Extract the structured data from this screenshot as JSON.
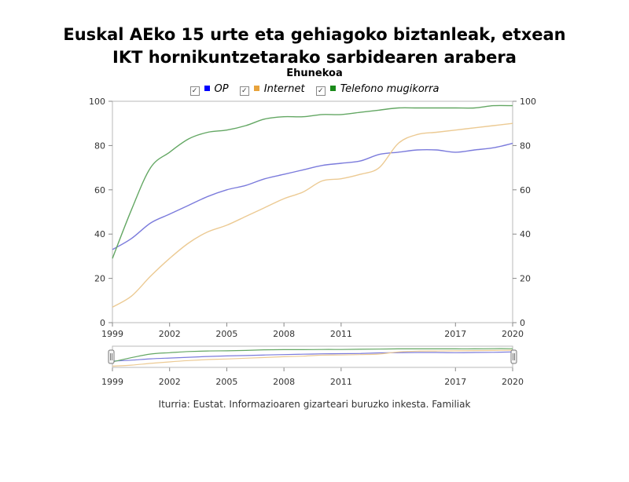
{
  "header": {
    "title_line1": "Euskal AEko 15 urte eta gehiagoko biztanleak, etxean",
    "title_line2": "IKT hornikuntzetarako sarbidearen arabera",
    "subtitle": "Ehunekoa"
  },
  "source": "Iturria: Eustat. Informazioaren gizarteari buruzko inkesta. Familiak",
  "chart_data": {
    "type": "line",
    "x_tick_labels": [
      "1999",
      "2002",
      "2005",
      "2008",
      "2011",
      "2017",
      "2020"
    ],
    "y_tick_labels": [
      "0",
      "20",
      "40",
      "60",
      "80",
      "100"
    ],
    "ylim": [
      0,
      100
    ],
    "grid": false,
    "legend_position": "top-center",
    "navigator": true,
    "series": [
      {
        "name": "OP",
        "color": "#0000ff",
        "line_color": "#7b7bdc",
        "x": [
          1999,
          2000,
          2001,
          2002,
          2003,
          2004,
          2005,
          2006,
          2007,
          2008,
          2009,
          2010,
          2011,
          2012,
          2013,
          2014,
          2015,
          2016,
          2017,
          2018,
          2019,
          2020
        ],
        "values": [
          33,
          38,
          45,
          49,
          53,
          57,
          60,
          62,
          65,
          67,
          69,
          71,
          72,
          73,
          76,
          77,
          78,
          78,
          77,
          78,
          79,
          81
        ]
      },
      {
        "name": "Internet",
        "color": "#e8a33c",
        "line_color": "#ecca93",
        "x": [
          1999,
          2000,
          2001,
          2002,
          2003,
          2004,
          2005,
          2006,
          2007,
          2008,
          2009,
          2010,
          2011,
          2012,
          2013,
          2014,
          2015,
          2016,
          2017,
          2018,
          2019,
          2020
        ],
        "values": [
          7,
          12,
          21,
          29,
          36,
          41,
          44,
          48,
          52,
          56,
          59,
          64,
          65,
          67,
          70,
          81,
          85,
          86,
          87,
          88,
          89,
          90
        ]
      },
      {
        "name": "Telefono mugikorra",
        "color": "#1a8a1a",
        "line_color": "#63a763",
        "x": [
          1999,
          2000,
          2001,
          2002,
          2003,
          2004,
          2005,
          2006,
          2007,
          2008,
          2009,
          2010,
          2011,
          2012,
          2013,
          2014,
          2015,
          2016,
          2017,
          2018,
          2019,
          2020
        ],
        "values": [
          29,
          51,
          70,
          77,
          83,
          86,
          87,
          89,
          92,
          93,
          93,
          94,
          94,
          95,
          96,
          97,
          97,
          97,
          97,
          97,
          98,
          98
        ]
      }
    ]
  }
}
